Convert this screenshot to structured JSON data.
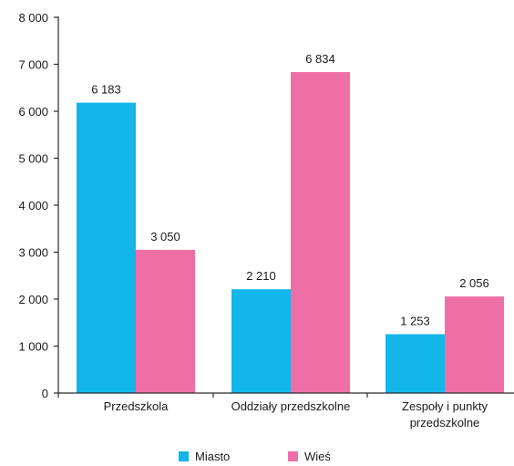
{
  "chart_data": {
    "type": "bar",
    "categories": [
      "Przedszkola",
      "Oddziały przedszkolne",
      "Zespoły i punkty przedszkolne"
    ],
    "category_lines": [
      [
        "Przedszkola"
      ],
      [
        "Oddziały przedszkolne"
      ],
      [
        "Zespoły i punkty",
        "przedszkolne"
      ]
    ],
    "series": [
      {
        "name": "Miasto",
        "color": "#12b6e8",
        "values": [
          6183,
          2210,
          1253
        ],
        "labels": [
          "6 183",
          "2 210",
          "1 253"
        ]
      },
      {
        "name": "Wieś",
        "color": "#ee6fa6",
        "values": [
          3050,
          6834,
          2056
        ],
        "labels": [
          "3 050",
          "6 834",
          "2 056"
        ]
      }
    ],
    "ylim": [
      0,
      8000
    ],
    "yticks": [
      0,
      1000,
      2000,
      3000,
      4000,
      5000,
      6000,
      7000,
      8000
    ],
    "ytick_labels": [
      "0",
      "1 000",
      "2 000",
      "3 000",
      "4 000",
      "5 000",
      "6 000",
      "7 000",
      "8 000"
    ],
    "grid": false,
    "legend_position": "bottom"
  }
}
